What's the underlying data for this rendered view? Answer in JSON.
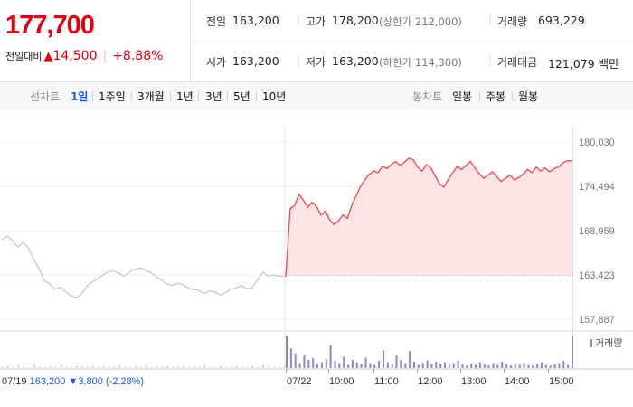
{
  "summary": {
    "price": "177,700",
    "change_label": "전일대비",
    "change_arrow": "▲",
    "change_amount": "14,500",
    "change_rate": "+8.88%",
    "prev_close_label": "전일",
    "prev_close": "163,200",
    "high_label": "고가",
    "high": "178,200",
    "upper_limit": "(상한가 212,000)",
    "volume_label": "거래량",
    "volume": "693,229",
    "open_label": "시가",
    "open": "163,200",
    "low_label": "저가",
    "low": "163,200",
    "lower_limit": "(하한가 114,300)",
    "value_label": "거래대금",
    "value": "121,079 백만"
  },
  "tabs": {
    "line_chart_label": "선차트",
    "periods": [
      "1일",
      "1주일",
      "3개월",
      "1년",
      "3년",
      "5년",
      "10년"
    ],
    "selected_period": "1일",
    "candle_label": "봉차트",
    "candle_periods": [
      "일봉",
      "주봉",
      "월봉"
    ]
  },
  "colors": {
    "up": "#e1000f",
    "down": "#1f5bd6",
    "prev_day_line": "#c8c8c8",
    "today_line": "#e8474f",
    "today_fill": "#fde4e4",
    "volume_bar": "#8f86c4",
    "volume_bar_prev": "#c9c4e3"
  },
  "chart_data": {
    "type": "line",
    "title": "",
    "y_ticks": [
      "180,030",
      "174,494",
      "168,959",
      "163,423",
      "157,887"
    ],
    "ylim": [
      157887,
      180030
    ],
    "base_price": 163423,
    "grid": true,
    "x_ticks": [
      "07/22",
      "10:00",
      "11:00",
      "12:00",
      "13:00",
      "14:00",
      "15:00"
    ],
    "previous_day": {
      "name": "07/19",
      "close": "163,200",
      "change_arrow": "▼",
      "change": "3,800",
      "change_rate": "(-2.28%)",
      "values": [
        167800,
        168300,
        167700,
        166900,
        167500,
        166800,
        165400,
        164200,
        162700,
        162300,
        161600,
        161900,
        161300,
        160800,
        160600,
        161100,
        162000,
        162600,
        162900,
        163400,
        163800,
        164000,
        163600,
        163300,
        163800,
        164100,
        164300,
        164000,
        163700,
        163200,
        162800,
        162300,
        162100,
        162400,
        162200,
        161800,
        161600,
        161500,
        161100,
        161400,
        161300,
        160900,
        161200,
        161600,
        161800,
        162100,
        161700,
        161800,
        162800,
        163800,
        163300,
        163400,
        163300,
        163200
      ]
    },
    "today": {
      "name": "07/22",
      "values": [
        163200,
        171700,
        172100,
        173500,
        172800,
        171900,
        172500,
        172000,
        170900,
        171400,
        170300,
        169700,
        170200,
        170900,
        170500,
        172100,
        173300,
        174500,
        175300,
        176000,
        176400,
        176200,
        177000,
        176700,
        177200,
        177600,
        177100,
        177500,
        178000,
        177800,
        176900,
        176400,
        177200,
        176800,
        175800,
        174800,
        174400,
        175400,
        176200,
        177000,
        176600,
        177100,
        177600,
        176800,
        176100,
        175500,
        175900,
        176300,
        175700,
        175100,
        175500,
        175900,
        175300,
        175600,
        176000,
        176600,
        176200,
        176900,
        176400,
        176800,
        176300,
        176700,
        176900,
        177400,
        177700,
        177700
      ]
    },
    "volume_label": "거래량",
    "volume": {
      "previous_day": [
        4,
        6,
        3,
        8,
        5,
        3,
        10,
        4,
        3,
        6,
        5,
        12,
        3,
        4,
        7,
        5,
        3,
        8,
        4,
        6,
        3,
        5,
        9,
        4,
        3,
        6,
        4,
        11,
        3,
        5,
        4,
        7,
        3,
        4,
        6,
        3,
        5,
        4,
        8,
        3,
        4,
        6,
        3,
        5,
        7,
        4,
        3,
        6,
        4,
        9,
        5,
        3,
        4,
        6
      ],
      "today": [
        100,
        60,
        45,
        15,
        40,
        25,
        30,
        12,
        18,
        28,
        70,
        22,
        15,
        35,
        10,
        25,
        18,
        12,
        32,
        15,
        10,
        22,
        55,
        18,
        12,
        38,
        25,
        15,
        52,
        20,
        10,
        16,
        24,
        12,
        20,
        14,
        18,
        10,
        15,
        22,
        12,
        8,
        14,
        10,
        18,
        12,
        8,
        15,
        10,
        20,
        12,
        8,
        14,
        10,
        16,
        10,
        8,
        12,
        18,
        10,
        8,
        12,
        15,
        22,
        10,
        100
      ]
    }
  }
}
